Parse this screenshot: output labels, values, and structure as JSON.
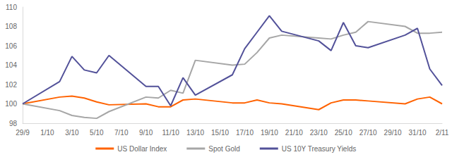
{
  "chart_data": {
    "type": "line",
    "categories": [
      "29/9",
      null,
      "1/10",
      null,
      "3/10",
      null,
      "5/10",
      null,
      "7/10",
      null,
      "9/10",
      null,
      "11/10",
      null,
      "13/10",
      null,
      "15/10",
      null,
      "17/10",
      null,
      "19/10",
      null,
      "21/10",
      null,
      "23/10",
      null,
      "25/10",
      null,
      "27/10",
      null,
      "29/10",
      null,
      "31/10",
      null,
      "2/11"
    ],
    "series": [
      {
        "name": "US Dollar Index",
        "color": "#ff6200",
        "values": [
          100,
          null,
          null,
          100.7,
          100.8,
          100.6,
          100.2,
          99.9,
          null,
          null,
          100.0,
          99.7,
          99.7,
          100.4,
          100.5,
          null,
          null,
          100.1,
          100.1,
          100.4,
          100.1,
          100.0,
          null,
          null,
          99.4,
          100.1,
          100.4,
          100.4,
          100.3,
          null,
          null,
          100.0,
          100.5,
          100.7,
          100.0
        ]
      },
      {
        "name": "Spot Gold",
        "color": "#a6a6a6",
        "values": [
          100,
          null,
          null,
          99.3,
          98.8,
          98.6,
          98.5,
          99.2,
          null,
          null,
          100.7,
          100.6,
          101.4,
          101.1,
          104.5,
          null,
          null,
          104.0,
          104.1,
          105.3,
          106.8,
          107.1,
          null,
          null,
          106.8,
          106.7,
          107.1,
          107.4,
          108.5,
          null,
          null,
          108.0,
          107.3,
          107.3,
          107.4
        ]
      },
      {
        "name": "US 10Y Treasury Yields",
        "color": "#525199",
        "values": [
          100,
          null,
          null,
          102.3,
          104.9,
          103.5,
          103.2,
          105.0,
          null,
          null,
          101.8,
          101.8,
          99.8,
          102.7,
          100.9,
          null,
          null,
          103.0,
          105.7,
          107.4,
          109.1,
          107.5,
          null,
          null,
          106.5,
          105.5,
          108.4,
          106.0,
          105.8,
          null,
          null,
          107.1,
          107.8,
          103.6,
          101.9
        ]
      }
    ],
    "ylim": [
      98,
      110
    ],
    "yticks": [
      98,
      100,
      102,
      104,
      106,
      108,
      110
    ],
    "grid": false,
    "legend": "bottom"
  }
}
